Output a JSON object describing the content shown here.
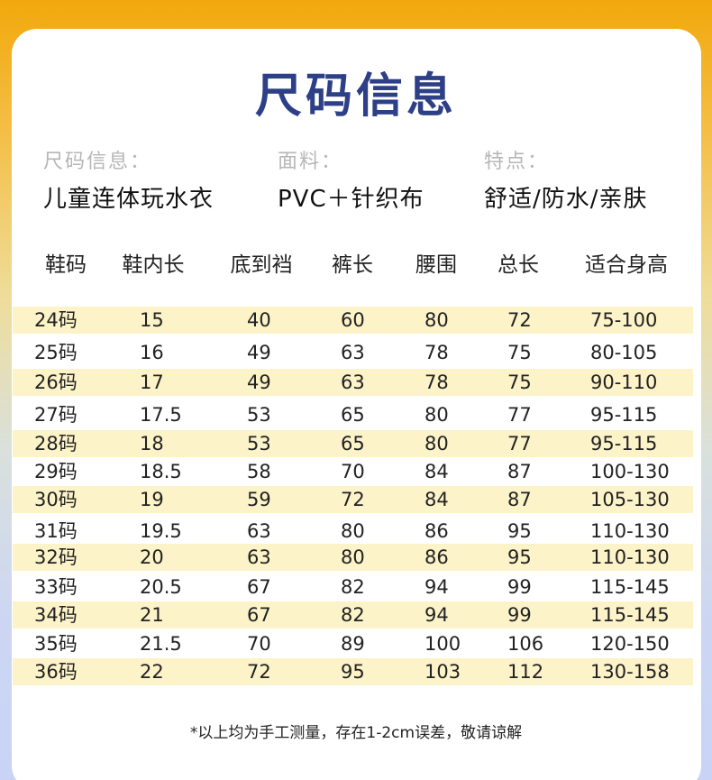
{
  "title": "尺码信息",
  "info": [
    {
      "label": "尺码信息：",
      "value": "儿童连体玩水衣"
    },
    {
      "label": "面料：",
      "value": "PVC＋针织布"
    },
    {
      "label": "特点：",
      "value": "舒适/防水/亲肤"
    }
  ],
  "table": {
    "headers": [
      "鞋码",
      "鞋内长",
      "底到裆",
      "裤长",
      "腰围",
      "总长",
      "适合身高"
    ],
    "rows": [
      [
        "24码",
        "15",
        "40",
        "60",
        "80",
        "72",
        "75-100"
      ],
      [
        "25码",
        "16",
        "49",
        "63",
        "78",
        "75",
        "80-105"
      ],
      [
        "26码",
        "17",
        "49",
        "63",
        "78",
        "75",
        "90-110"
      ],
      [
        "27码",
        "17.5",
        "53",
        "65",
        "80",
        "77",
        "95-115"
      ],
      [
        "28码",
        "18",
        "53",
        "65",
        "80",
        "77",
        "95-115"
      ],
      [
        "29码",
        "18.5",
        "58",
        "70",
        "84",
        "87",
        "100-130"
      ],
      [
        "30码",
        "19",
        "59",
        "72",
        "84",
        "87",
        "105-130"
      ],
      [
        "31码",
        "19.5",
        "63",
        "80",
        "86",
        "95",
        "110-130"
      ],
      [
        "32码",
        "20",
        "63",
        "80",
        "86",
        "95",
        "110-130"
      ],
      [
        "33码",
        "20.5",
        "67",
        "82",
        "94",
        "99",
        "115-145"
      ],
      [
        "34码",
        "21",
        "67",
        "82",
        "94",
        "99",
        "115-145"
      ],
      [
        "35码",
        "21.5",
        "70",
        "89",
        "100",
        "106",
        "120-150"
      ],
      [
        "36码",
        "22",
        "72",
        "95",
        "103",
        "112",
        "130-158"
      ]
    ]
  },
  "footnote": "*以上均为手工测量，存在1-2cm误差，敬请谅解",
  "colors": {
    "title": "#2d3f86",
    "stripe": "#fdf3c9",
    "label": "#b6b6b6"
  }
}
